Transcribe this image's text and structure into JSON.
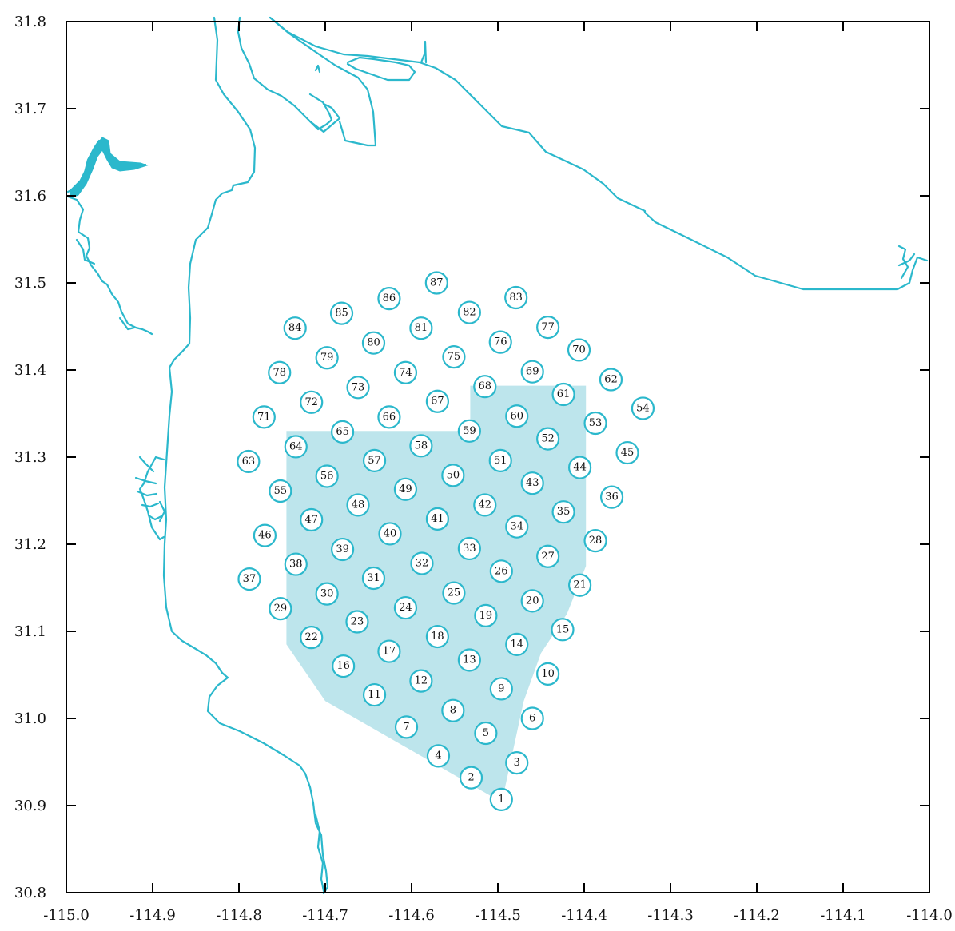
{
  "map": {
    "x_ticks": [
      "-115.0",
      "-114.9",
      "-114.8",
      "-114.7",
      "-114.6",
      "-114.5",
      "-114.4",
      "-114.3",
      "-114.2",
      "-114.1",
      "-114.0"
    ],
    "y_ticks": [
      "30.8",
      "30.9",
      "31.0",
      "31.1",
      "31.2",
      "31.3",
      "31.4",
      "31.5",
      "31.6",
      "31.7",
      "31.8"
    ],
    "xlim": [
      -115.0,
      -114.0
    ],
    "ylim": [
      30.8,
      31.8
    ],
    "colors": {
      "coast": "#2bb8cc",
      "area_fill": "#bde5ec",
      "frame": "#000000"
    },
    "shaded_area": [
      [
        -114.745,
        31.33
      ],
      [
        -114.532,
        31.33
      ],
      [
        -114.532,
        31.382
      ],
      [
        -114.398,
        31.382
      ],
      [
        -114.398,
        31.175
      ],
      [
        -114.42,
        31.12
      ],
      [
        -114.45,
        31.075
      ],
      [
        -114.47,
        31.02
      ],
      [
        -114.493,
        30.915
      ],
      [
        -114.503,
        30.908
      ],
      [
        -114.7,
        31.02
      ],
      [
        -114.745,
        31.085
      ]
    ],
    "stations": [
      {
        "id": "1",
        "lon": -114.496,
        "lat": 30.907
      },
      {
        "id": "2",
        "lon": -114.531,
        "lat": 30.932
      },
      {
        "id": "3",
        "lon": -114.478,
        "lat": 30.949
      },
      {
        "id": "4",
        "lon": -114.569,
        "lat": 30.957
      },
      {
        "id": "5",
        "lon": -114.514,
        "lat": 30.983
      },
      {
        "id": "6",
        "lon": -114.46,
        "lat": 31.0
      },
      {
        "id": "7",
        "lon": -114.606,
        "lat": 30.99
      },
      {
        "id": "8",
        "lon": -114.552,
        "lat": 31.009
      },
      {
        "id": "9",
        "lon": -114.496,
        "lat": 31.034
      },
      {
        "id": "10",
        "lon": -114.442,
        "lat": 31.051
      },
      {
        "id": "11",
        "lon": -114.643,
        "lat": 31.027
      },
      {
        "id": "12",
        "lon": -114.589,
        "lat": 31.043
      },
      {
        "id": "13",
        "lon": -114.533,
        "lat": 31.067
      },
      {
        "id": "14",
        "lon": -114.478,
        "lat": 31.085
      },
      {
        "id": "15",
        "lon": -114.425,
        "lat": 31.102
      },
      {
        "id": "16",
        "lon": -114.679,
        "lat": 31.06
      },
      {
        "id": "17",
        "lon": -114.626,
        "lat": 31.077
      },
      {
        "id": "18",
        "lon": -114.57,
        "lat": 31.094
      },
      {
        "id": "19",
        "lon": -114.514,
        "lat": 31.118
      },
      {
        "id": "20",
        "lon": -114.46,
        "lat": 31.135
      },
      {
        "id": "21",
        "lon": -114.405,
        "lat": 31.153
      },
      {
        "id": "22",
        "lon": -114.716,
        "lat": 31.093
      },
      {
        "id": "23",
        "lon": -114.663,
        "lat": 31.111
      },
      {
        "id": "24",
        "lon": -114.607,
        "lat": 31.127
      },
      {
        "id": "25",
        "lon": -114.551,
        "lat": 31.144
      },
      {
        "id": "26",
        "lon": -114.496,
        "lat": 31.169
      },
      {
        "id": "27",
        "lon": -114.442,
        "lat": 31.186
      },
      {
        "id": "28",
        "lon": -114.387,
        "lat": 31.204
      },
      {
        "id": "29",
        "lon": -114.752,
        "lat": 31.126
      },
      {
        "id": "30",
        "lon": -114.698,
        "lat": 31.143
      },
      {
        "id": "31",
        "lon": -114.644,
        "lat": 31.161
      },
      {
        "id": "32",
        "lon": -114.588,
        "lat": 31.178
      },
      {
        "id": "33",
        "lon": -114.533,
        "lat": 31.195
      },
      {
        "id": "34",
        "lon": -114.478,
        "lat": 31.22
      },
      {
        "id": "35",
        "lon": -114.424,
        "lat": 31.237
      },
      {
        "id": "36",
        "lon": -114.368,
        "lat": 31.254
      },
      {
        "id": "37",
        "lon": -114.788,
        "lat": 31.16
      },
      {
        "id": "38",
        "lon": -114.734,
        "lat": 31.177
      },
      {
        "id": "39",
        "lon": -114.68,
        "lat": 31.194
      },
      {
        "id": "40",
        "lon": -114.625,
        "lat": 31.212
      },
      {
        "id": "41",
        "lon": -114.57,
        "lat": 31.229
      },
      {
        "id": "42",
        "lon": -114.515,
        "lat": 31.245
      },
      {
        "id": "43",
        "lon": -114.46,
        "lat": 31.27
      },
      {
        "id": "44",
        "lon": -114.405,
        "lat": 31.288
      },
      {
        "id": "45",
        "lon": -114.35,
        "lat": 31.305
      },
      {
        "id": "46",
        "lon": -114.77,
        "lat": 31.21
      },
      {
        "id": "47",
        "lon": -114.716,
        "lat": 31.228
      },
      {
        "id": "48",
        "lon": -114.662,
        "lat": 31.245
      },
      {
        "id": "49",
        "lon": -114.607,
        "lat": 31.263
      },
      {
        "id": "50",
        "lon": -114.552,
        "lat": 31.279
      },
      {
        "id": "51",
        "lon": -114.497,
        "lat": 31.296
      },
      {
        "id": "52",
        "lon": -114.442,
        "lat": 31.321
      },
      {
        "id": "53",
        "lon": -114.387,
        "lat": 31.339
      },
      {
        "id": "54",
        "lon": -114.332,
        "lat": 31.356
      },
      {
        "id": "55",
        "lon": -114.752,
        "lat": 31.261
      },
      {
        "id": "56",
        "lon": -114.698,
        "lat": 31.278
      },
      {
        "id": "57",
        "lon": -114.643,
        "lat": 31.296
      },
      {
        "id": "58",
        "lon": -114.589,
        "lat": 31.313
      },
      {
        "id": "59",
        "lon": -114.533,
        "lat": 31.33
      },
      {
        "id": "60",
        "lon": -114.478,
        "lat": 31.347
      },
      {
        "id": "61",
        "lon": -114.424,
        "lat": 31.372
      },
      {
        "id": "62",
        "lon": -114.369,
        "lat": 31.389
      },
      {
        "id": "63",
        "lon": -114.789,
        "lat": 31.295
      },
      {
        "id": "64",
        "lon": -114.734,
        "lat": 31.312
      },
      {
        "id": "65",
        "lon": -114.68,
        "lat": 31.329
      },
      {
        "id": "66",
        "lon": -114.626,
        "lat": 31.346
      },
      {
        "id": "67",
        "lon": -114.57,
        "lat": 31.364
      },
      {
        "id": "68",
        "lon": -114.515,
        "lat": 31.381
      },
      {
        "id": "69",
        "lon": -114.46,
        "lat": 31.398
      },
      {
        "id": "70",
        "lon": -114.406,
        "lat": 31.423
      },
      {
        "id": "71",
        "lon": -114.771,
        "lat": 31.346
      },
      {
        "id": "72",
        "lon": -114.716,
        "lat": 31.363
      },
      {
        "id": "73",
        "lon": -114.662,
        "lat": 31.38
      },
      {
        "id": "74",
        "lon": -114.607,
        "lat": 31.397
      },
      {
        "id": "75",
        "lon": -114.551,
        "lat": 31.415
      },
      {
        "id": "76",
        "lon": -114.497,
        "lat": 31.432
      },
      {
        "id": "77",
        "lon": -114.442,
        "lat": 31.449
      },
      {
        "id": "78",
        "lon": -114.753,
        "lat": 31.397
      },
      {
        "id": "79",
        "lon": -114.698,
        "lat": 31.414
      },
      {
        "id": "80",
        "lon": -114.644,
        "lat": 31.431
      },
      {
        "id": "81",
        "lon": -114.589,
        "lat": 31.448
      },
      {
        "id": "82",
        "lon": -114.533,
        "lat": 31.466
      },
      {
        "id": "83",
        "lon": -114.479,
        "lat": 31.483
      },
      {
        "id": "84",
        "lon": -114.735,
        "lat": 31.448
      },
      {
        "id": "85",
        "lon": -114.681,
        "lat": 31.465
      },
      {
        "id": "86",
        "lon": -114.626,
        "lat": 31.482
      },
      {
        "id": "87",
        "lon": -114.571,
        "lat": 31.5
      }
    ]
  }
}
